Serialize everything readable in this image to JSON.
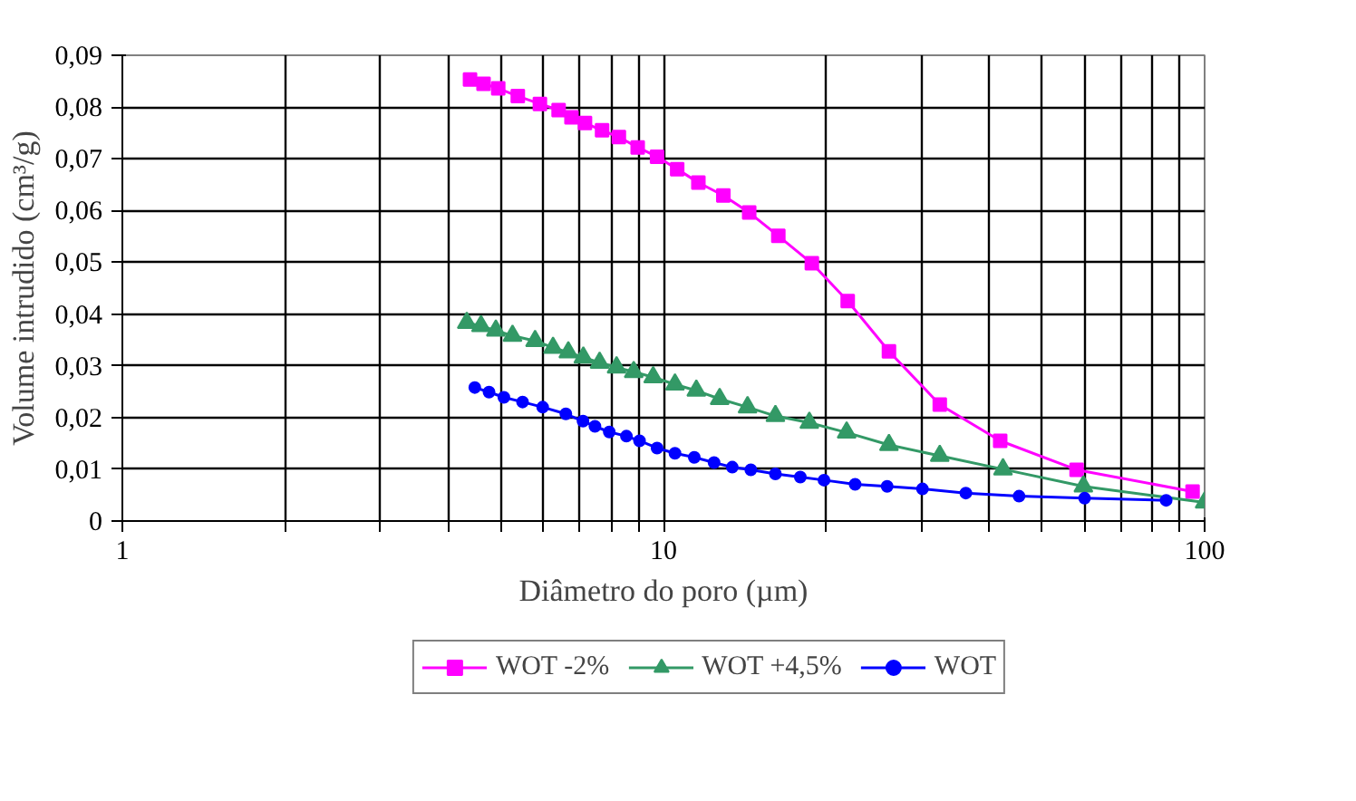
{
  "chart_data": {
    "type": "line",
    "xlabel": "Diâmetro do poro (µm)",
    "ylabel": "Volume intrudido (cm³/g)",
    "log": "x",
    "xlim": [
      1,
      100
    ],
    "xticks": [
      1,
      {
        "value": 2,
        "label": null
      },
      {
        "value": 3,
        "label": null
      },
      {
        "value": 4,
        "label": null
      },
      {
        "value": 5,
        "label": null
      },
      {
        "value": 6,
        "label": null
      },
      {
        "value": 7,
        "label": null
      },
      {
        "value": 8,
        "label": null
      },
      {
        "value": 9,
        "label": null
      },
      10,
      {
        "value": 20,
        "label": null
      },
      {
        "value": 30,
        "label": null
      },
      {
        "value": 40,
        "label": null
      },
      {
        "value": 50,
        "label": null
      },
      {
        "value": 60,
        "label": null
      },
      {
        "value": 70,
        "label": null
      },
      {
        "value": 80,
        "label": null
      },
      {
        "value": 90,
        "label": null
      },
      100
    ],
    "ylim": [
      0,
      0.09
    ],
    "yticks": [
      0,
      {
        "value": 0.01,
        "label": "0,01"
      },
      {
        "value": 0.02,
        "label": "0,02"
      },
      {
        "value": 0.03,
        "label": "0,03"
      },
      {
        "value": 0.04,
        "label": "0,04"
      },
      {
        "value": 0.05,
        "label": "0,05"
      },
      {
        "value": 0.06,
        "label": "0,06"
      },
      {
        "value": 0.07,
        "label": "0,07"
      },
      {
        "value": 0.08,
        "label": "0,08"
      },
      {
        "value": 0.09,
        "label": "0,09"
      }
    ],
    "grid": true,
    "legend": "bottom",
    "line_style": "solid",
    "series": [
      {
        "name": "WOT -2%",
        "color": "#ff00ff",
        "marker": "square",
        "x": [
          4.39,
          4.65,
          4.95,
          5.38,
          5.91,
          6.4,
          6.76,
          7.16,
          7.7,
          8.27,
          8.96,
          9.73,
          10.6,
          11.6,
          12.9,
          14.4,
          16.3,
          18.8,
          21.9,
          26.1,
          32.4,
          41.9,
          58.0,
          95.0
        ],
        "values": [
          0.0853,
          0.0845,
          0.0836,
          0.0821,
          0.0806,
          0.0794,
          0.078,
          0.0769,
          0.0755,
          0.0742,
          0.0722,
          0.0704,
          0.068,
          0.0654,
          0.0629,
          0.0596,
          0.0551,
          0.0498,
          0.0425,
          0.0328,
          0.0225,
          0.0155,
          0.0099,
          0.0057
        ]
      },
      {
        "name": "WOT +4,5%",
        "color": "#339966",
        "marker": "triangle",
        "x": [
          4.33,
          4.6,
          4.9,
          5.26,
          5.79,
          6.25,
          6.67,
          7.11,
          7.62,
          8.19,
          8.81,
          9.57,
          10.5,
          11.5,
          12.7,
          14.3,
          16.1,
          18.6,
          21.8,
          26.1,
          32.4,
          42.4,
          59.7,
          100
        ],
        "values": [
          0.0383,
          0.0377,
          0.0368,
          0.0358,
          0.0348,
          0.0335,
          0.0326,
          0.0316,
          0.0306,
          0.0297,
          0.0288,
          0.0278,
          0.0264,
          0.0252,
          0.0236,
          0.022,
          0.0203,
          0.019,
          0.0171,
          0.0147,
          0.0126,
          0.01,
          0.0067,
          0.0036
        ]
      },
      {
        "name": "WOT",
        "color": "#0000ff",
        "marker": "circle",
        "x": [
          4.48,
          4.76,
          5.07,
          5.49,
          5.98,
          6.6,
          7.1,
          7.47,
          7.94,
          8.54,
          9.03,
          9.73,
          10.5,
          11.4,
          12.4,
          13.4,
          14.5,
          16.1,
          17.9,
          19.8,
          22.6,
          25.9,
          30.1,
          36.2,
          45.4,
          60.0,
          84.9
        ],
        "values": [
          0.0258,
          0.0249,
          0.0239,
          0.023,
          0.022,
          0.0207,
          0.0193,
          0.0183,
          0.0172,
          0.0164,
          0.0155,
          0.0141,
          0.0131,
          0.0123,
          0.0113,
          0.0104,
          0.0099,
          0.0091,
          0.0085,
          0.0079,
          0.0071,
          0.0067,
          0.0062,
          0.0054,
          0.0048,
          0.0044,
          0.004
        ]
      }
    ]
  }
}
